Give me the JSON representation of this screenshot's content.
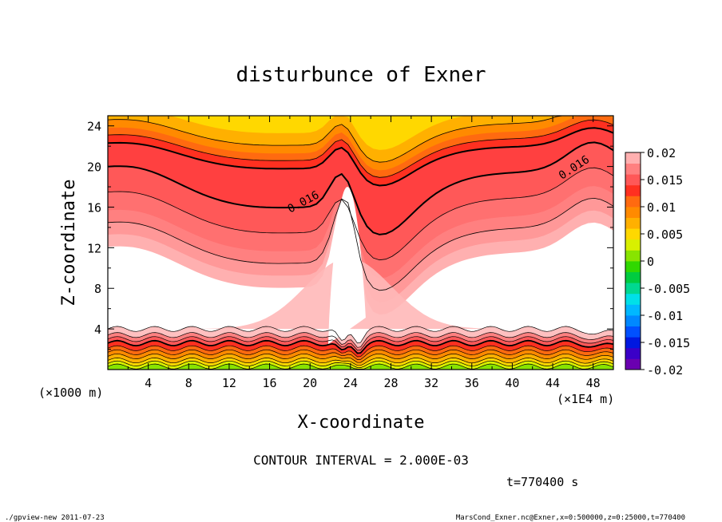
{
  "chart_data": {
    "type": "heatmap",
    "title": "disturbunce of Exner",
    "xlabel": "X-coordinate",
    "ylabel": "Z-coordinate",
    "x_unit_left": "(×1000 m)",
    "x_unit_right": "(×1E4 m)",
    "xlim": [
      0,
      50
    ],
    "ylim": [
      0,
      25
    ],
    "x_ticks": [
      4,
      8,
      12,
      16,
      20,
      24,
      28,
      32,
      36,
      40,
      44,
      48
    ],
    "y_ticks": [
      4,
      8,
      12,
      16,
      20,
      24
    ],
    "contour_interval_text": "CONTOUR INTERVAL = 2.000E-03",
    "time_text": "t=770400 s",
    "contour_labels": [
      "0.016",
      "0.016"
    ],
    "colorbar": {
      "min": -0.02,
      "max": 0.02,
      "tick_labels": [
        "0.02",
        "0.015",
        "0.01",
        "0.005",
        "0",
        "-0.005",
        "-0.01",
        "-0.015",
        "-0.02"
      ],
      "tick_values": [
        0.02,
        0.015,
        0.01,
        0.005,
        0,
        -0.005,
        -0.01,
        -0.015,
        -0.02
      ],
      "colors": [
        "#6a00b0",
        "#3a00c8",
        "#0018e0",
        "#0050ff",
        "#0088ff",
        "#00b8ff",
        "#00e0e8",
        "#00d890",
        "#00cc40",
        "#30d800",
        "#88e400",
        "#d8f000",
        "#ffd800",
        "#ffb000",
        "#ff8a00",
        "#ff6a10",
        "#ff3020",
        "#ff5858",
        "#ff8080",
        "#ffb0b0"
      ]
    },
    "domain_white_region_note": "undefined / interior low-value area rendered white"
  },
  "footer": {
    "left": "./gpview-new   2011-07-23",
    "right": "MarsCond_Exner.nc@Exner,x=0:500000,z=0:25000,t=770400"
  }
}
